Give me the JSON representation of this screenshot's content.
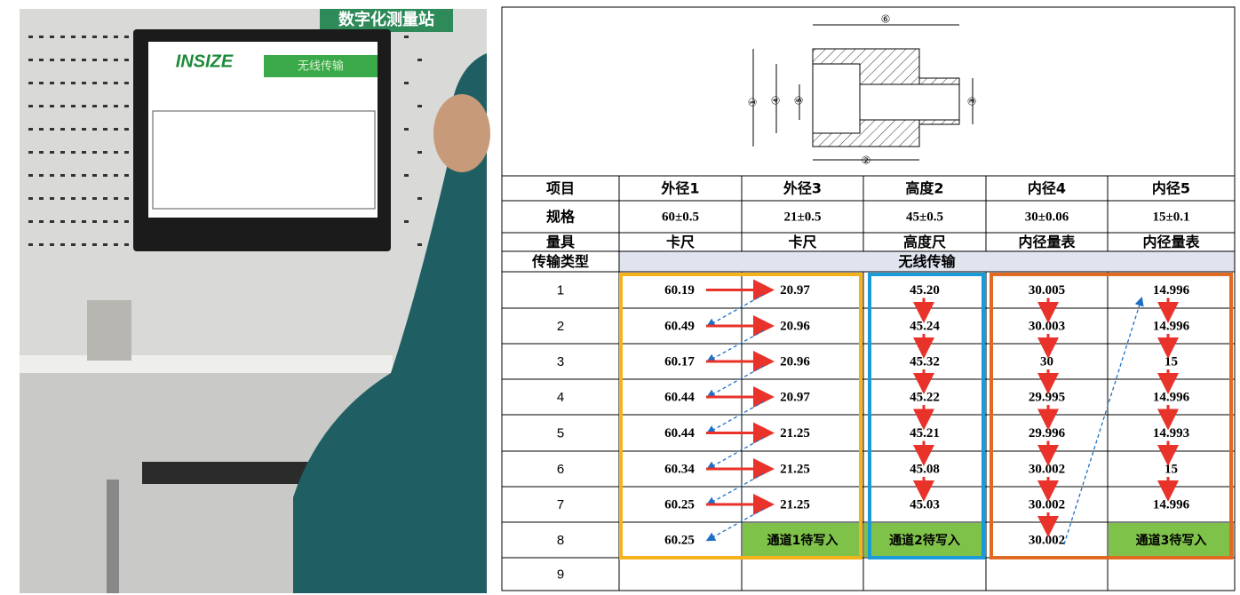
{
  "photo": {
    "sign": "数字化测量站",
    "monitor_logo": "INSIZE",
    "monitor_title": "无线传输"
  },
  "diagram": {
    "labels": [
      "①",
      "②",
      "③",
      "④",
      "⑤",
      "⑥"
    ]
  },
  "table": {
    "rows": [
      [
        "项目",
        "外径1",
        "外径3",
        "高度2",
        "内径4",
        "内径5"
      ],
      [
        "规格",
        "60±0.5",
        "21±0.5",
        "45±0.5",
        "30±0.06",
        "15±0.1"
      ],
      [
        "量具",
        "卡尺",
        "卡尺",
        "高度尺",
        "内径量表",
        "内径量表"
      ],
      [
        "传输类型",
        "无线传输"
      ],
      [
        "1",
        "60.19",
        "20.97",
        "45.20",
        "30.005",
        "14.996"
      ],
      [
        "2",
        "60.49",
        "20.96",
        "45.24",
        "30.003",
        "14.996"
      ],
      [
        "3",
        "60.17",
        "20.96",
        "45.32",
        "30",
        "15"
      ],
      [
        "4",
        "60.44",
        "20.97",
        "45.22",
        "29.995",
        "14.996"
      ],
      [
        "5",
        "60.44",
        "21.25",
        "45.21",
        "29.996",
        "14.993"
      ],
      [
        "6",
        "60.34",
        "21.25",
        "45.08",
        "30.002",
        "15"
      ],
      [
        "7",
        "60.25",
        "21.25",
        "45.03",
        "30.002",
        "14.996"
      ],
      [
        "8",
        "60.25",
        "通道1待写入",
        "通道2待写入",
        "30.002",
        "通道3待写入"
      ],
      [
        "9"
      ]
    ]
  }
}
